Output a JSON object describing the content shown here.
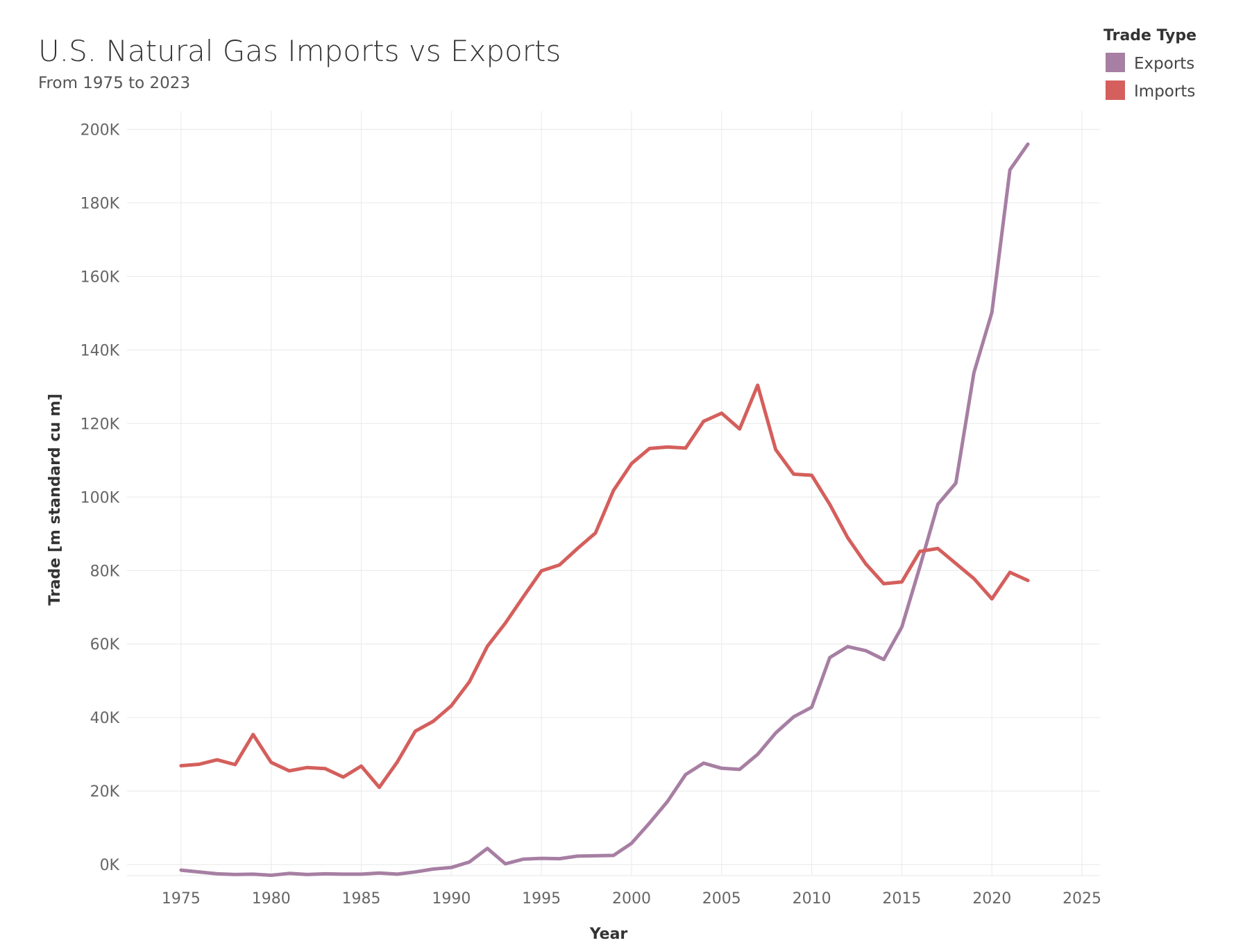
{
  "chart_data": {
    "type": "line",
    "title": "U.S. Natural Gas Imports vs Exports",
    "subtitle": "From 1975 to 2023",
    "xlabel": "Year",
    "ylabel": "Trade [m standard cu m]",
    "xlim": [
      1972,
      2026
    ],
    "ylim": [
      -3000,
      205000
    ],
    "x_ticks": [
      1975,
      1980,
      1985,
      1990,
      1995,
      2000,
      2005,
      2010,
      2015,
      2020,
      2025
    ],
    "y_ticks": [
      0,
      20000,
      40000,
      60000,
      80000,
      100000,
      120000,
      140000,
      160000,
      180000,
      200000
    ],
    "y_tick_labels": [
      "0K",
      "20K",
      "40K",
      "60K",
      "80K",
      "100K",
      "120K",
      "140K",
      "160K",
      "180K",
      "200K"
    ],
    "grid": true,
    "legend": {
      "title": "Trade Type",
      "placement": "top-right"
    },
    "x": [
      1975,
      1976,
      1977,
      1978,
      1979,
      1980,
      1981,
      1982,
      1983,
      1984,
      1985,
      1986,
      1987,
      1988,
      1989,
      1990,
      1991,
      1992,
      1993,
      1994,
      1995,
      1996,
      1997,
      1998,
      1999,
      2000,
      2001,
      2002,
      2003,
      2004,
      2005,
      2006,
      2007,
      2008,
      2009,
      2010,
      2011,
      2012,
      2013,
      2014,
      2015,
      2016,
      2017,
      2018,
      2019,
      2020,
      2021,
      2022
    ],
    "series": [
      {
        "name": "Exports",
        "color": "#a77fa3",
        "values": [
          -1500,
          -2000,
          -2500,
          -2700,
          -2600,
          -2900,
          -2400,
          -2700,
          -2500,
          -2600,
          -2600,
          -2300,
          -2600,
          -2000,
          -1200,
          -800,
          700,
          4400,
          200,
          1500,
          1700,
          1600,
          2300,
          2400,
          2500,
          5800,
          11300,
          17200,
          24500,
          27600,
          26200,
          25900,
          30000,
          35800,
          40200,
          42800,
          56300,
          59300,
          58200,
          55800,
          64600,
          81000,
          98000,
          103800,
          133800,
          150200,
          189000,
          196000
        ]
      },
      {
        "name": "Imports",
        "color": "#d45f5c",
        "values": [
          26900,
          27300,
          28500,
          27200,
          35400,
          27800,
          25500,
          26400,
          26100,
          23800,
          26800,
          21000,
          27900,
          36300,
          39000,
          43200,
          49700,
          59400,
          65700,
          72900,
          79900,
          81500,
          86000,
          90200,
          101800,
          109100,
          113200,
          113600,
          113300,
          120600,
          122800,
          118500,
          130400,
          112900,
          106200,
          105900,
          98000,
          88900,
          81800,
          76400,
          76900,
          85200,
          86000,
          81900,
          77800,
          72300,
          79500,
          77300
        ]
      }
    ]
  }
}
